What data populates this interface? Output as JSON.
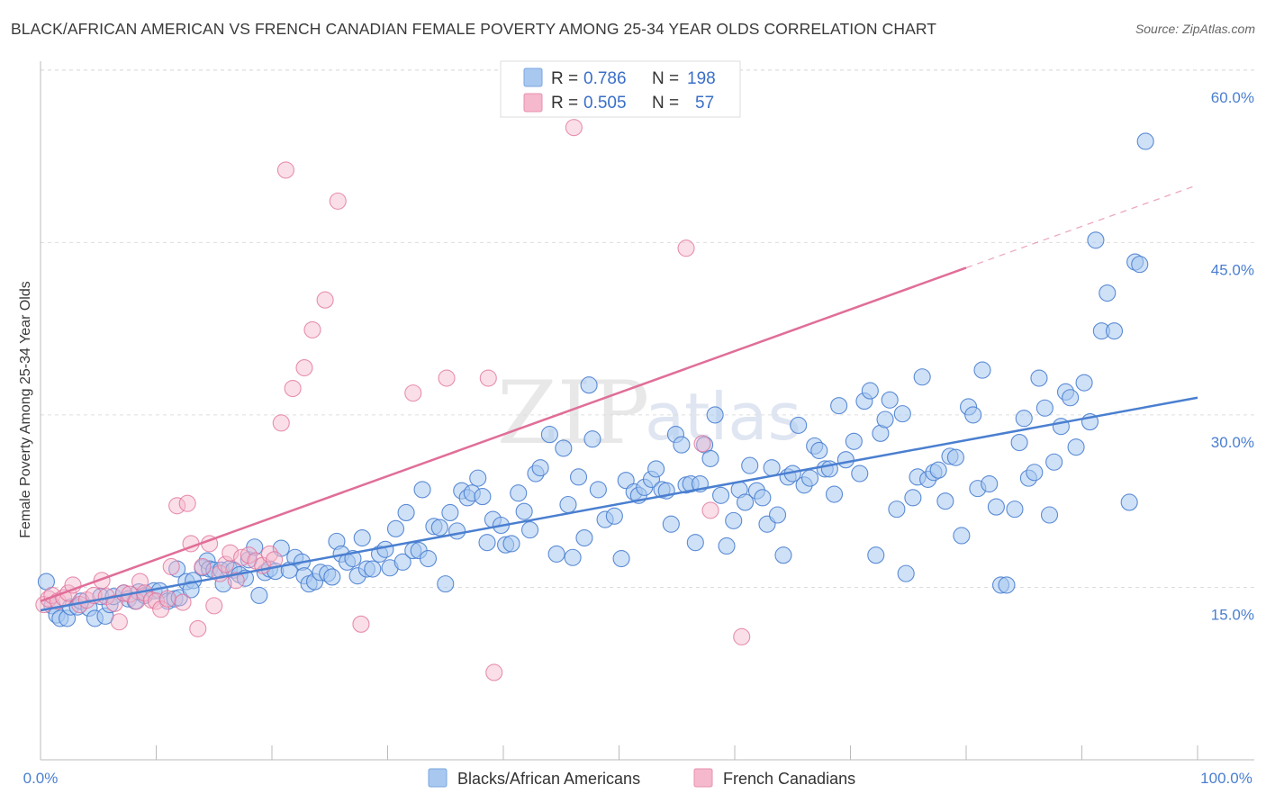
{
  "title": "BLACK/AFRICAN AMERICAN VS FRENCH CANADIAN FEMALE POVERTY AMONG 25-34 YEAR OLDS CORRELATION CHART",
  "source": "Source: ZipAtlas.com",
  "watermark": {
    "zip": "ZIP",
    "atlas": "atlas"
  },
  "colors": {
    "blue": "#4a7fd0",
    "blue_fill": "#a8c8f0",
    "pink": "#e06e98",
    "pink_fill": "#f5b8cc",
    "grid": "#dddddd"
  },
  "legend": {
    "r_label": "R =",
    "n_label": "N =",
    "series": [
      {
        "r": "0.786",
        "n": "198"
      },
      {
        "r": "0.505",
        "n": "57"
      }
    ]
  },
  "bottom_legend": [
    "Blacks/African Americans",
    "French Canadians"
  ],
  "chart_data": {
    "type": "scatter",
    "title": "BLACK/AFRICAN AMERICAN VS FRENCH CANADIAN FEMALE POVERTY AMONG 25-34 YEAR OLDS CORRELATION CHART",
    "xlabel": "",
    "ylabel": "Female Poverty Among 25-34 Year Olds",
    "xlim": [
      0,
      100
    ],
    "ylim": [
      0,
      62
    ],
    "x_tick_labels": [
      "0.0%",
      "100.0%"
    ],
    "y_ticks": [
      15,
      30,
      45,
      60
    ],
    "y_tick_labels": [
      "15.0%",
      "30.0%",
      "45.0%",
      "60.0%"
    ],
    "series": [
      {
        "name": "Blacks/African Americans",
        "r": 0.786,
        "n": 198,
        "trend": {
          "x": [
            0,
            100
          ],
          "y": [
            13.0,
            31.5
          ]
        },
        "points": [
          [
            0.5,
            15.5
          ],
          [
            1.0,
            13.4
          ],
          [
            1.4,
            12.6
          ],
          [
            1.7,
            12.3
          ],
          [
            2.3,
            12.3
          ],
          [
            2.6,
            13.3
          ],
          [
            3.2,
            13.3
          ],
          [
            3.5,
            13.8
          ],
          [
            4.2,
            13.2
          ],
          [
            4.7,
            12.3
          ],
          [
            5.6,
            12.5
          ],
          [
            6.0,
            13.5
          ],
          [
            5.2,
            14.2
          ],
          [
            6.3,
            14.2
          ],
          [
            7.2,
            14.5
          ],
          [
            7.6,
            14.0
          ],
          [
            8.2,
            13.8
          ],
          [
            8.5,
            14.6
          ],
          [
            9.0,
            14.3
          ],
          [
            9.8,
            14.7
          ],
          [
            10.3,
            14.7
          ],
          [
            11.0,
            13.8
          ],
          [
            11.6,
            14.0
          ],
          [
            12.0,
            14.1
          ],
          [
            11.8,
            16.6
          ],
          [
            12.6,
            15.5
          ],
          [
            13.2,
            15.6
          ],
          [
            13.0,
            14.8
          ],
          [
            14.0,
            16.7
          ],
          [
            14.4,
            17.3
          ],
          [
            14.6,
            16.6
          ],
          [
            15.0,
            16.5
          ],
          [
            15.6,
            16.5
          ],
          [
            15.8,
            15.3
          ],
          [
            16.3,
            16.6
          ],
          [
            16.7,
            16.5
          ],
          [
            17.2,
            16.1
          ],
          [
            17.7,
            15.8
          ],
          [
            18.0,
            17.4
          ],
          [
            18.5,
            18.5
          ],
          [
            18.9,
            14.3
          ],
          [
            19.4,
            16.3
          ],
          [
            19.8,
            16.6
          ],
          [
            20.3,
            16.4
          ],
          [
            20.8,
            18.4
          ],
          [
            21.5,
            16.5
          ],
          [
            22.0,
            17.6
          ],
          [
            22.6,
            17.2
          ],
          [
            22.8,
            16.0
          ],
          [
            23.2,
            15.3
          ],
          [
            23.7,
            15.5
          ],
          [
            24.2,
            16.3
          ],
          [
            24.8,
            16.2
          ],
          [
            25.2,
            15.9
          ],
          [
            25.6,
            19.0
          ],
          [
            26.0,
            17.9
          ],
          [
            26.5,
            17.2
          ],
          [
            27.0,
            17.5
          ],
          [
            27.4,
            16.0
          ],
          [
            27.8,
            19.3
          ],
          [
            28.2,
            16.6
          ],
          [
            28.7,
            16.6
          ],
          [
            29.3,
            17.9
          ],
          [
            29.8,
            18.3
          ],
          [
            30.2,
            16.7
          ],
          [
            30.7,
            20.1
          ],
          [
            31.3,
            17.2
          ],
          [
            31.6,
            21.5
          ],
          [
            32.2,
            18.2
          ],
          [
            32.7,
            18.2
          ],
          [
            33.0,
            23.5
          ],
          [
            33.5,
            17.5
          ],
          [
            34.0,
            20.3
          ],
          [
            34.5,
            20.2
          ],
          [
            35.0,
            15.3
          ],
          [
            35.4,
            21.5
          ],
          [
            36.0,
            19.9
          ],
          [
            36.4,
            23.4
          ],
          [
            36.9,
            22.8
          ],
          [
            37.3,
            23.2
          ],
          [
            37.8,
            24.5
          ],
          [
            38.2,
            22.9
          ],
          [
            38.6,
            18.9
          ],
          [
            39.1,
            20.9
          ],
          [
            39.8,
            20.4
          ],
          [
            40.2,
            18.7
          ],
          [
            40.7,
            18.8
          ],
          [
            41.3,
            23.2
          ],
          [
            41.8,
            21.6
          ],
          [
            42.3,
            20.0
          ],
          [
            42.8,
            24.9
          ],
          [
            43.2,
            25.4
          ],
          [
            44.0,
            28.3
          ],
          [
            44.6,
            17.9
          ],
          [
            45.2,
            27.1
          ],
          [
            45.6,
            22.2
          ],
          [
            46.0,
            17.6
          ],
          [
            46.5,
            24.6
          ],
          [
            47.0,
            19.3
          ],
          [
            47.4,
            32.6
          ],
          [
            47.7,
            27.9
          ],
          [
            48.2,
            23.5
          ],
          [
            48.8,
            20.9
          ],
          [
            49.6,
            21.2
          ],
          [
            50.2,
            17.5
          ],
          [
            50.6,
            24.3
          ],
          [
            51.3,
            23.3
          ],
          [
            51.7,
            23.0
          ],
          [
            52.2,
            23.7
          ],
          [
            52.8,
            24.4
          ],
          [
            53.2,
            25.3
          ],
          [
            53.7,
            23.5
          ],
          [
            54.1,
            23.4
          ],
          [
            54.5,
            20.5
          ],
          [
            54.9,
            28.3
          ],
          [
            55.4,
            27.4
          ],
          [
            55.8,
            23.9
          ],
          [
            56.2,
            24.0
          ],
          [
            56.6,
            18.9
          ],
          [
            57.0,
            24.0
          ],
          [
            57.4,
            27.4
          ],
          [
            57.9,
            26.2
          ],
          [
            58.3,
            30.0
          ],
          [
            58.8,
            23.0
          ],
          [
            59.3,
            18.6
          ],
          [
            59.9,
            20.8
          ],
          [
            60.4,
            23.5
          ],
          [
            60.9,
            22.4
          ],
          [
            61.3,
            25.6
          ],
          [
            61.9,
            23.4
          ],
          [
            62.4,
            22.8
          ],
          [
            62.8,
            20.5
          ],
          [
            63.2,
            25.4
          ],
          [
            63.7,
            21.3
          ],
          [
            64.2,
            17.8
          ],
          [
            64.6,
            24.6
          ],
          [
            65.0,
            24.9
          ],
          [
            65.5,
            29.1
          ],
          [
            66.0,
            23.9
          ],
          [
            66.5,
            24.5
          ],
          [
            66.9,
            27.3
          ],
          [
            67.3,
            26.9
          ],
          [
            67.8,
            25.3
          ],
          [
            68.2,
            25.3
          ],
          [
            68.6,
            23.1
          ],
          [
            69.0,
            30.8
          ],
          [
            69.6,
            26.1
          ],
          [
            70.3,
            27.7
          ],
          [
            70.8,
            24.9
          ],
          [
            71.2,
            31.2
          ],
          [
            71.7,
            32.1
          ],
          [
            72.2,
            17.8
          ],
          [
            72.6,
            28.4
          ],
          [
            73.0,
            29.6
          ],
          [
            73.4,
            31.3
          ],
          [
            74.0,
            21.8
          ],
          [
            74.5,
            30.1
          ],
          [
            74.8,
            16.2
          ],
          [
            75.4,
            22.8
          ],
          [
            75.8,
            24.6
          ],
          [
            76.2,
            33.3
          ],
          [
            76.7,
            24.4
          ],
          [
            77.2,
            25.0
          ],
          [
            77.6,
            25.2
          ],
          [
            78.2,
            22.5
          ],
          [
            78.6,
            26.4
          ],
          [
            79.1,
            26.3
          ],
          [
            79.6,
            19.5
          ],
          [
            80.2,
            30.7
          ],
          [
            80.6,
            30.0
          ],
          [
            81.0,
            23.6
          ],
          [
            81.4,
            33.9
          ],
          [
            82.0,
            24.0
          ],
          [
            82.6,
            22.0
          ],
          [
            83.0,
            15.2
          ],
          [
            83.5,
            15.2
          ],
          [
            84.2,
            21.8
          ],
          [
            84.6,
            27.6
          ],
          [
            85.0,
            29.7
          ],
          [
            85.4,
            24.5
          ],
          [
            85.9,
            25.0
          ],
          [
            86.3,
            33.2
          ],
          [
            86.8,
            30.6
          ],
          [
            87.2,
            21.3
          ],
          [
            87.6,
            25.9
          ],
          [
            88.2,
            29.0
          ],
          [
            88.6,
            32.0
          ],
          [
            89.0,
            31.5
          ],
          [
            89.5,
            27.2
          ],
          [
            90.2,
            32.8
          ],
          [
            90.7,
            29.4
          ],
          [
            91.2,
            45.2
          ],
          [
            91.7,
            37.3
          ],
          [
            92.2,
            40.6
          ],
          [
            92.8,
            37.3
          ],
          [
            94.1,
            22.4
          ],
          [
            94.6,
            43.3
          ],
          [
            95.0,
            43.1
          ],
          [
            95.5,
            53.8
          ]
        ]
      },
      {
        "name": "French Canadians",
        "r": 0.505,
        "n": 57,
        "trend": {
          "x": [
            0,
            80
          ],
          "y": [
            13.8,
            42.8
          ]
        },
        "trend_dashed": {
          "x": [
            80,
            100
          ],
          "y": [
            42.8,
            50.0
          ]
        },
        "points": [
          [
            0.3,
            13.5
          ],
          [
            0.7,
            14.0
          ],
          [
            1.0,
            14.3
          ],
          [
            1.5,
            13.8
          ],
          [
            2.0,
            14.1
          ],
          [
            2.4,
            14.5
          ],
          [
            2.8,
            15.2
          ],
          [
            3.4,
            13.5
          ],
          [
            4.0,
            13.9
          ],
          [
            4.6,
            14.3
          ],
          [
            5.3,
            15.6
          ],
          [
            5.7,
            14.2
          ],
          [
            6.4,
            13.6
          ],
          [
            6.8,
            12.0
          ],
          [
            7.2,
            14.5
          ],
          [
            7.7,
            14.4
          ],
          [
            8.3,
            13.8
          ],
          [
            8.6,
            15.5
          ],
          [
            9.0,
            14.5
          ],
          [
            9.6,
            13.9
          ],
          [
            10.0,
            13.8
          ],
          [
            10.4,
            13.1
          ],
          [
            11.0,
            14.0
          ],
          [
            11.3,
            16.8
          ],
          [
            11.8,
            22.1
          ],
          [
            12.3,
            13.7
          ],
          [
            12.7,
            22.3
          ],
          [
            13.0,
            18.8
          ],
          [
            13.6,
            11.4
          ],
          [
            14.0,
            16.8
          ],
          [
            14.6,
            18.8
          ],
          [
            15.0,
            13.4
          ],
          [
            15.5,
            16.2
          ],
          [
            16.0,
            17.0
          ],
          [
            16.4,
            18.0
          ],
          [
            16.9,
            15.6
          ],
          [
            17.4,
            17.6
          ],
          [
            18.0,
            17.8
          ],
          [
            18.6,
            17.3
          ],
          [
            19.2,
            16.9
          ],
          [
            19.8,
            17.9
          ],
          [
            20.2,
            17.4
          ],
          [
            20.8,
            29.3
          ],
          [
            21.2,
            51.3
          ],
          [
            21.8,
            32.3
          ],
          [
            22.8,
            34.1
          ],
          [
            23.5,
            37.4
          ],
          [
            24.6,
            40.0
          ],
          [
            25.7,
            48.6
          ],
          [
            27.7,
            11.8
          ],
          [
            32.2,
            31.9
          ],
          [
            35.1,
            33.2
          ],
          [
            38.7,
            33.2
          ],
          [
            39.2,
            7.6
          ],
          [
            46.1,
            55.0
          ],
          [
            55.8,
            44.5
          ],
          [
            57.2,
            27.5
          ],
          [
            57.9,
            21.7
          ],
          [
            60.6,
            10.7
          ]
        ]
      }
    ]
  }
}
